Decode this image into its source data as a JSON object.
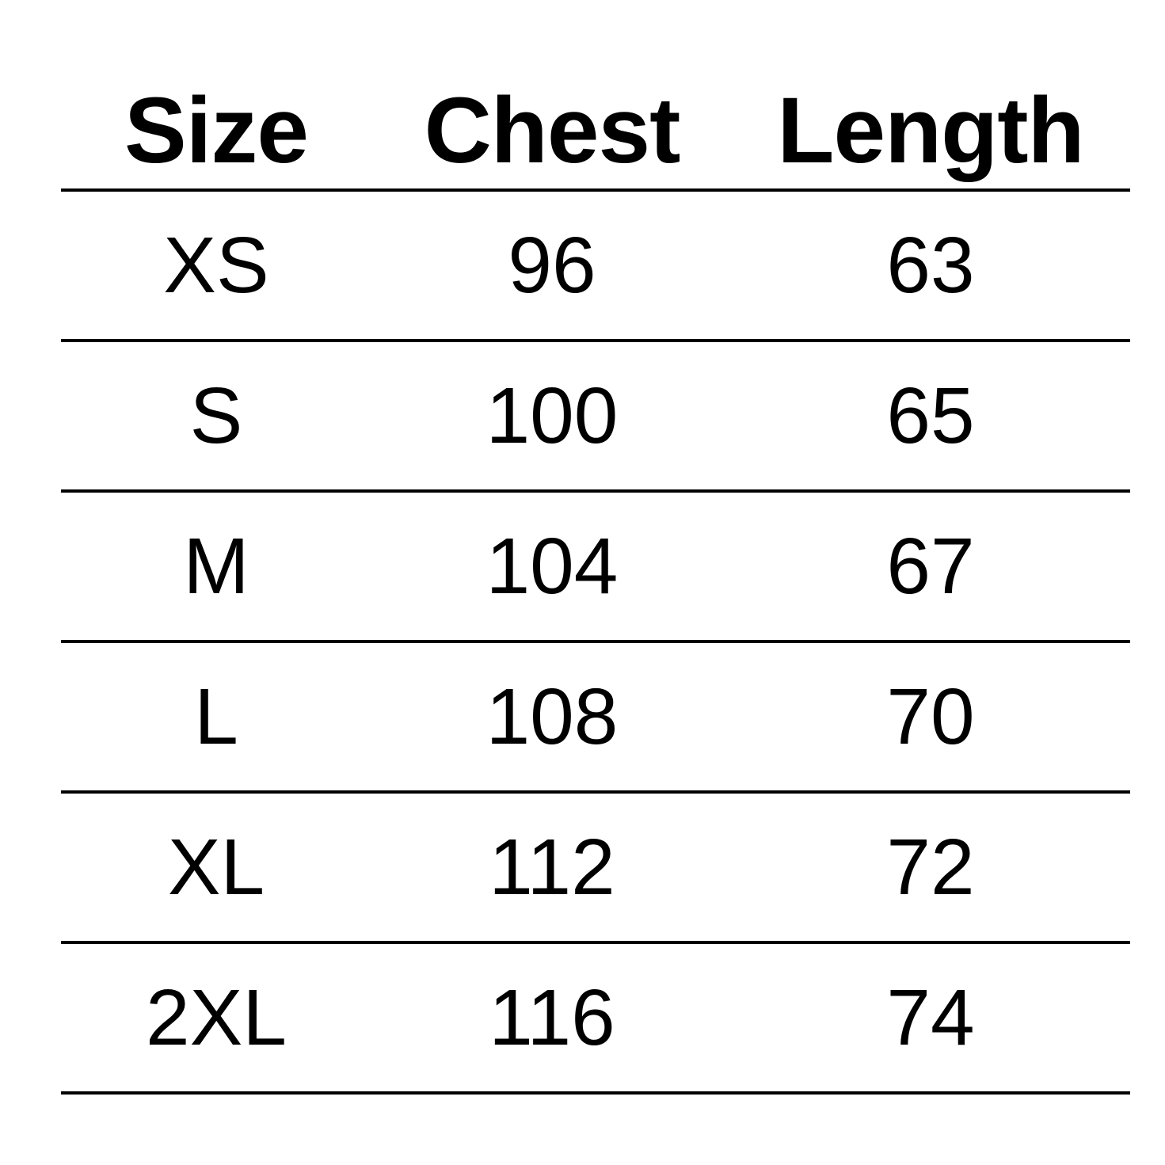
{
  "headers": [
    "Size",
    "Chest",
    "Length"
  ],
  "rows": [
    {
      "size": "XS",
      "chest": "96",
      "length": "63"
    },
    {
      "size": "S",
      "chest": "100",
      "length": "65"
    },
    {
      "size": "M",
      "chest": "104",
      "length": "67"
    },
    {
      "size": "L",
      "chest": "108",
      "length": "70"
    },
    {
      "size": "XL",
      "chest": "112",
      "length": "72"
    },
    {
      "size": "2XL",
      "chest": "116",
      "length": "74"
    }
  ]
}
